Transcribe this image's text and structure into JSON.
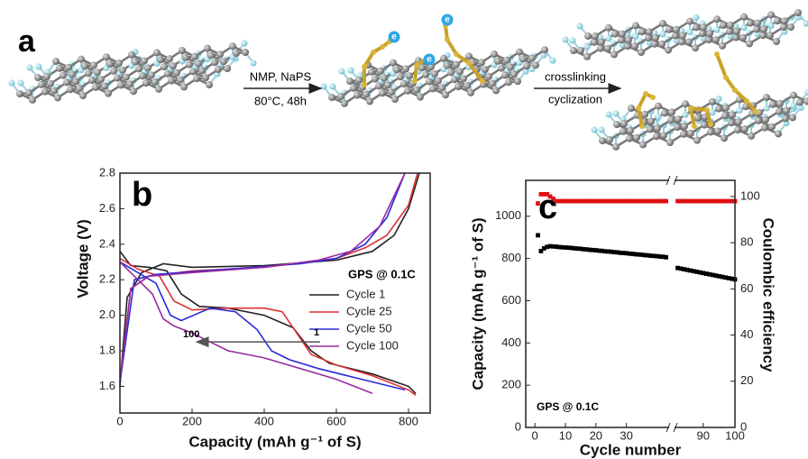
{
  "panel_a": {
    "label": "a",
    "electron": "e",
    "step1": {
      "top": "NMP, NaPS",
      "bottom": "80°C, 48h"
    },
    "step2": {
      "top": "crosslinking",
      "bottom": "cyclization"
    }
  },
  "chart_data": [
    {
      "type": "line",
      "panel_label": "b",
      "xlabel": "Capacity (mAh g⁻¹ of S)",
      "ylabel": "Voltage (V)",
      "xlim": [
        0,
        860
      ],
      "ylim": [
        1.45,
        2.8
      ],
      "xticks": [
        0,
        200,
        400,
        600,
        800
      ],
      "yticks": [
        1.6,
        1.8,
        {
          "value": 2,
          "label": "2.0"
        },
        2.2,
        2.4,
        2.6,
        2.8
      ],
      "legend_title": "GPS @ 0.1C",
      "arrow_start_label": "1",
      "arrow_end_label": "100",
      "series": [
        {
          "name": "Cycle 1",
          "color": "#222222",
          "x": [
            0,
            30,
            80,
            130,
            170,
            220,
            300,
            400,
            480,
            530,
            580,
            700,
            800,
            820,
            null,
            0,
            20,
            60,
            120,
            200,
            400,
            600,
            700,
            760,
            800,
            830
          ],
          "values": [
            2.36,
            2.28,
            2.27,
            2.25,
            2.12,
            2.05,
            2.04,
            2.0,
            1.93,
            1.8,
            1.73,
            1.67,
            1.6,
            1.56,
            null,
            1.6,
            2.1,
            2.24,
            2.29,
            2.27,
            2.28,
            2.31,
            2.36,
            2.45,
            2.6,
            2.8
          ]
        },
        {
          "name": "Cycle 25",
          "color": "#e03030",
          "x": [
            0,
            50,
            110,
            150,
            200,
            300,
            400,
            450,
            490,
            530,
            600,
            700,
            800,
            820,
            null,
            0,
            30,
            80,
            200,
            400,
            600,
            680,
            740,
            800,
            825
          ],
          "values": [
            2.32,
            2.26,
            2.22,
            2.08,
            2.03,
            2.04,
            2.04,
            2.02,
            1.9,
            1.78,
            1.72,
            1.66,
            1.58,
            1.55,
            null,
            1.62,
            2.15,
            2.22,
            2.25,
            2.27,
            2.32,
            2.38,
            2.45,
            2.62,
            2.8
          ]
        },
        {
          "name": "Cycle 50",
          "color": "#2a2ad8",
          "x": [
            0,
            50,
            100,
            140,
            170,
            250,
            320,
            380,
            420,
            470,
            550,
            650,
            790,
            null,
            0,
            40,
            100,
            300,
            500,
            600,
            680,
            740,
            790
          ],
          "values": [
            2.3,
            2.24,
            2.18,
            2.0,
            1.97,
            2.04,
            2.02,
            1.92,
            1.8,
            1.75,
            1.7,
            1.65,
            1.58,
            null,
            1.62,
            2.2,
            2.23,
            2.26,
            2.29,
            2.32,
            2.4,
            2.55,
            2.8
          ]
        },
        {
          "name": "Cycle 100",
          "color": "#9a2ca0",
          "x": [
            0,
            40,
            90,
            120,
            150,
            200,
            300,
            400,
            500,
            600,
            700,
            null,
            0,
            30,
            80,
            200,
            400,
            550,
            640,
            720,
            790
          ],
          "values": [
            2.3,
            2.22,
            2.12,
            1.98,
            1.94,
            1.9,
            1.8,
            1.76,
            1.7,
            1.64,
            1.56,
            null,
            1.62,
            2.15,
            2.22,
            2.24,
            2.27,
            2.31,
            2.36,
            2.5,
            2.8
          ]
        }
      ]
    },
    {
      "type": "scatter",
      "panel_label": "c",
      "xlabel": "Cycle number",
      "ylabel": "Capacity (mAh g⁻¹ of S)",
      "y2label": "Coulombic efficiency",
      "y2label_color": "#e01010",
      "annotation": "GPS @ 0.1C",
      "xlim": [
        -3,
        100
      ],
      "x_break": [
        44,
        81
      ],
      "xticks": [
        0,
        10,
        20,
        30,
        90,
        100
      ],
      "ylim": [
        0,
        1170
      ],
      "yticks": [
        0,
        200,
        400,
        600,
        800,
        1000
      ],
      "y2lim": [
        0,
        107
      ],
      "y2ticks": [
        0,
        20,
        40,
        60,
        80,
        100
      ],
      "x": [
        1,
        2,
        3,
        4,
        5,
        6,
        7,
        8,
        9,
        10,
        11,
        12,
        13,
        14,
        15,
        16,
        17,
        18,
        19,
        20,
        21,
        22,
        23,
        24,
        25,
        26,
        27,
        28,
        29,
        30,
        31,
        32,
        33,
        34,
        35,
        36,
        37,
        38,
        39,
        40,
        41,
        42,
        43,
        82,
        83,
        84,
        85,
        86,
        87,
        88,
        89,
        90,
        91,
        92,
        93,
        94,
        95,
        96,
        97,
        98,
        99,
        100
      ],
      "series": [
        {
          "color": "#000000",
          "marker": "square",
          "values": [
            910,
            835,
            848,
            855,
            858,
            857,
            856,
            854,
            853,
            852,
            851,
            850,
            848,
            847,
            846,
            844,
            843,
            841,
            840,
            839,
            837,
            836,
            834,
            833,
            832,
            830,
            829,
            827,
            826,
            825,
            823,
            822,
            820,
            819,
            818,
            816,
            815,
            813,
            812,
            811,
            809,
            808,
            806,
            755,
            752,
            749,
            746,
            743,
            740,
            737,
            734,
            731,
            728,
            725,
            722,
            719,
            716,
            713,
            710,
            707,
            704,
            701
          ]
        },
        {
          "color": "#e01010",
          "marker": "square",
          "axis": "y2",
          "values": [
            97,
            101,
            101,
            101,
            100,
            99,
            98,
            98,
            98,
            98,
            98,
            98,
            98,
            98,
            98,
            98,
            98,
            98,
            98,
            98,
            98,
            98,
            98,
            98,
            98,
            98,
            98,
            98,
            98,
            98,
            98,
            98,
            98,
            98,
            98,
            98,
            98,
            98,
            98,
            98,
            98,
            98,
            98,
            98,
            98,
            98,
            98,
            98,
            98,
            98,
            98,
            98,
            98,
            98,
            98,
            98,
            98,
            98,
            98,
            98,
            98,
            98
          ]
        }
      ]
    }
  ]
}
